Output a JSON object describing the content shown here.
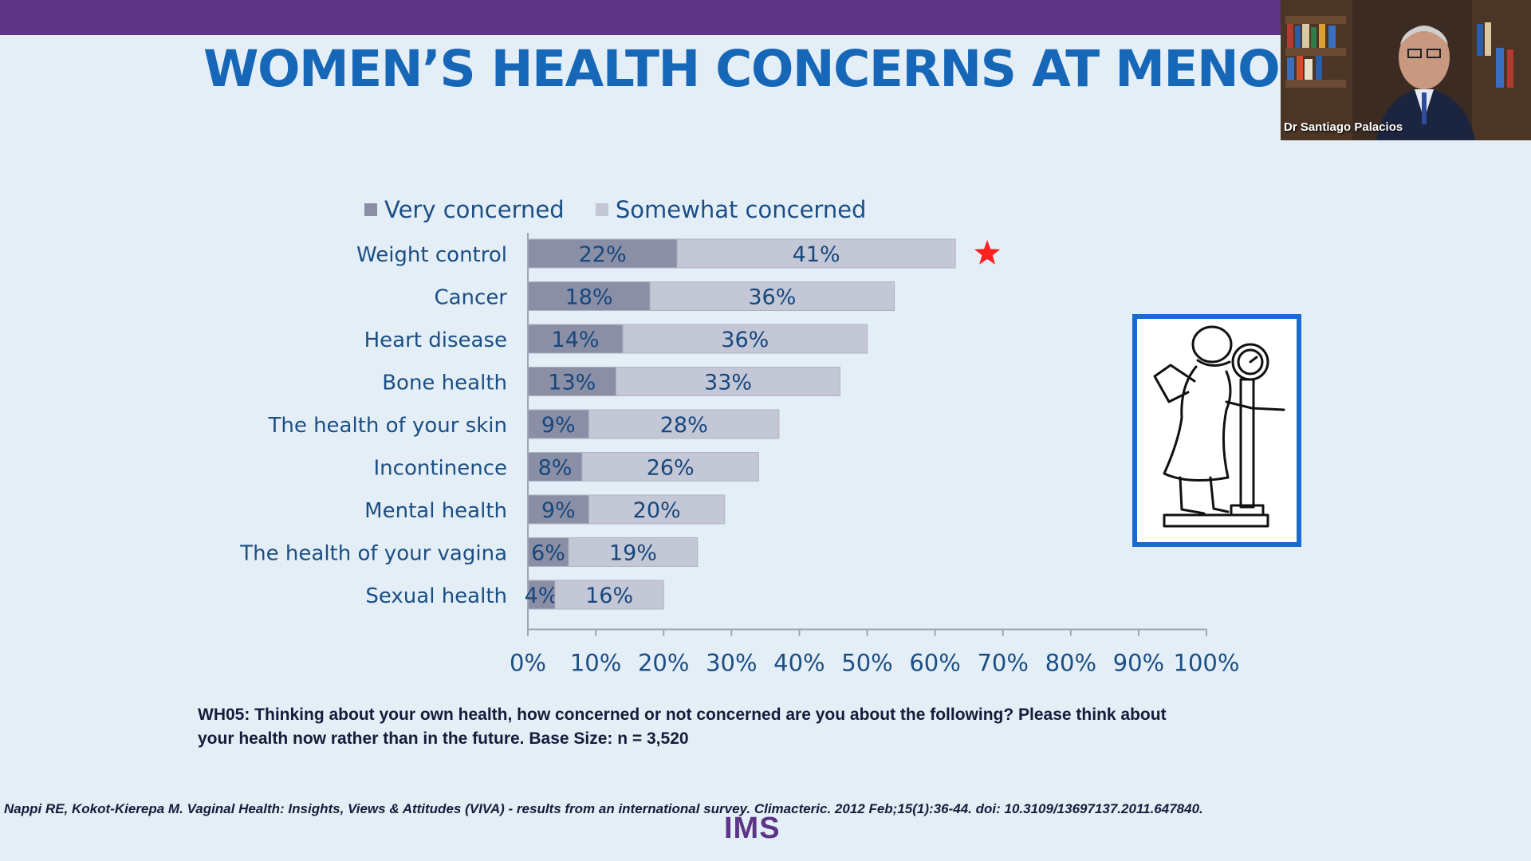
{
  "slide": {
    "title": "WOMEN’S HEALTH CONCERNS AT MENOPAUSE",
    "footnote": "WH05: Thinking about your own health, how concerned or not concerned are you about the following? Please think about your health now rather than in the future. Base Size: n = 3,520",
    "citation": "Nappi RE, Kokot-Kierepa M. Vaginal Health: Insights, Views & Attitudes (VIVA) - results from an international survey. Climacteric. 2012 Feb;15(1):36-44. doi: 10.3109/13697137.2011.647840.",
    "logo": "IMS"
  },
  "video": {
    "speaker": "Dr Santiago Palacios"
  },
  "colors": {
    "title": "#1667b8",
    "header_bar": "#5c3586",
    "very_concerned": "#8a8fa6",
    "somewhat_concerned": "#c4c7d6",
    "label_text": "#1b4e85",
    "star": "#ff2020",
    "frame": "#1a6bd0"
  },
  "icons": {
    "marker": "star-icon",
    "illustration": "woman-on-scale-icon"
  },
  "chart_data": {
    "type": "bar",
    "orientation": "horizontal",
    "stacked": true,
    "categories": [
      "Weight control",
      "Cancer",
      "Heart disease",
      "Bone health",
      "The health of your skin",
      "Incontinence",
      "Mental health",
      "The health of your vagina",
      "Sexual health"
    ],
    "series": [
      {
        "name": "Very concerned",
        "values": [
          22,
          18,
          14,
          13,
          9,
          8,
          9,
          6,
          4
        ]
      },
      {
        "name": "Somewhat concerned",
        "values": [
          41,
          36,
          36,
          33,
          28,
          26,
          20,
          19,
          16
        ]
      }
    ],
    "value_labels": [
      [
        "22%",
        "18%",
        "14%",
        "13%",
        "9%",
        "8%",
        "9%",
        "6%",
        "4%"
      ],
      [
        "41%",
        "36%",
        "36%",
        "33%",
        "28%",
        "26%",
        "20%",
        "19%",
        "16%"
      ]
    ],
    "x_ticks": [
      "0%",
      "10%",
      "20%",
      "30%",
      "40%",
      "50%",
      "60%",
      "70%",
      "80%",
      "90%",
      "100%"
    ],
    "xlim": [
      0,
      100
    ],
    "legend_position": "top",
    "grid": false,
    "highlighted_category": "Weight control"
  }
}
